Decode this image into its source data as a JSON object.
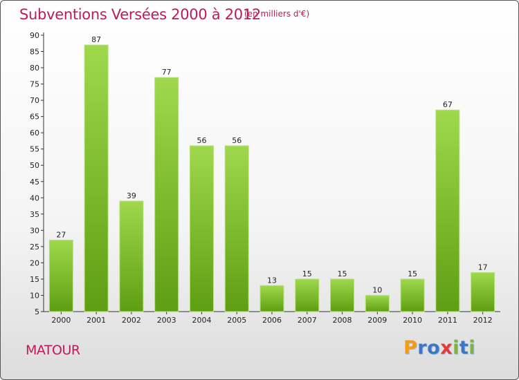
{
  "chart_data": {
    "type": "bar",
    "title": "Subventions Versées 2000 à 2012",
    "subtitle": "(en milliers d'€)",
    "categories": [
      "2000",
      "2001",
      "2002",
      "2003",
      "2004",
      "2005",
      "2006",
      "2007",
      "2008",
      "2009",
      "2010",
      "2011",
      "2012"
    ],
    "values": [
      27,
      87,
      39,
      77,
      56,
      56,
      13,
      15,
      15,
      10,
      15,
      67,
      17
    ],
    "ylim": [
      5,
      90
    ],
    "yticks": [
      5,
      10,
      15,
      20,
      25,
      30,
      35,
      40,
      45,
      50,
      55,
      60,
      65,
      70,
      75,
      80,
      85,
      90
    ],
    "grid": false,
    "bar_color": "#7cbf2e"
  },
  "footer": {
    "commune": "MATOUR",
    "brand_letters": [
      {
        "ch": "P",
        "color": "#f39c12"
      },
      {
        "ch": "r",
        "color": "#3a78c3"
      },
      {
        "ch": "o",
        "color": "#3a78c3"
      },
      {
        "ch": "x",
        "color": "#e53935"
      },
      {
        "ch": "i",
        "color": "#7cb342"
      },
      {
        "ch": "t",
        "color": "#3a78c3"
      },
      {
        "ch": "i",
        "color": "#7cb342"
      }
    ]
  }
}
